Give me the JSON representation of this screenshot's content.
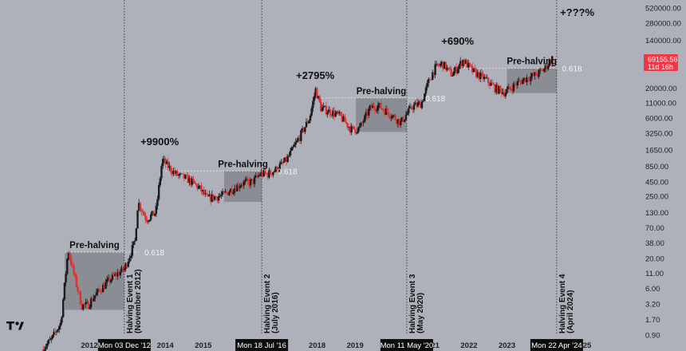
{
  "chart_data": {
    "type": "line",
    "scale": "log",
    "y_ticks": [
      "520000.00",
      "280000.00",
      "140000.00",
      "70000.00",
      "20000.00",
      "11000.00",
      "6000.00",
      "3250.00",
      "1650.00",
      "850.00",
      "450.00",
      "250.00",
      "130.00",
      "70.00",
      "38.00",
      "20.00",
      "11.00",
      "6.00",
      "3.20",
      "1.70",
      "0.90"
    ],
    "x_ticks": [
      "2012",
      "2014",
      "2015",
      "2018",
      "2019",
      "2021",
      "2022",
      "2023",
      "2025"
    ],
    "price_label": {
      "price": "69155.56",
      "countdown": "11d 16h",
      "color": "#f23645"
    },
    "series": [
      {
        "x": [
          2010.75,
          2011.0,
          2011.25,
          2011.44,
          2011.6,
          2011.8,
          2011.95,
          2012.2,
          2012.5,
          2012.75,
          2012.92,
          2013.2,
          2013.28,
          2013.5,
          2013.75,
          2013.92,
          2014.1,
          2014.3,
          2014.6,
          2014.9,
          2015.1,
          2015.5,
          2015.8,
          2016.0,
          2016.3,
          2016.5,
          2016.7,
          2016.9,
          2017.2,
          2017.5,
          2017.8,
          2017.96,
          2018.1,
          2018.3,
          2018.6,
          2018.9,
          2019.1,
          2019.4,
          2019.6,
          2019.9,
          2020.2,
          2020.5,
          2020.75,
          2020.95,
          2021.1,
          2021.3,
          2021.55,
          2021.85,
          2022.1,
          2022.4,
          2022.7,
          2022.95,
          2023.2,
          2023.5,
          2023.8,
          2024.0,
          2024.2
        ],
        "y": [
          0.5,
          0.75,
          1.5,
          29,
          10,
          3,
          3,
          5,
          8,
          11,
          13,
          40,
          200,
          100,
          130,
          1100,
          800,
          600,
          500,
          350,
          230,
          260,
          350,
          420,
          450,
          620,
          620,
          730,
          1100,
          2500,
          6000,
          19000,
          9000,
          8000,
          6500,
          3800,
          3800,
          9000,
          10000,
          7300,
          5000,
          9500,
          11000,
          28000,
          45000,
          55000,
          35000,
          63000,
          40000,
          30000,
          20000,
          17000,
          23000,
          30000,
          35000,
          45000,
          69000
        ]
      }
    ],
    "annotations": {
      "gains": [
        "+9900%",
        "+2795%",
        "+690%",
        "+???%"
      ],
      "pre_halving": [
        "Pre-halving",
        "Pre-halving",
        "Pre-halving",
        "Pre-halving"
      ],
      "fib_level": "0.618",
      "halving_events": [
        {
          "title": "Halving Event 1",
          "sub": "(November 2012)",
          "date_label": "Mon 03 Dec '12",
          "year": 2012.92
        },
        {
          "title": "Halving Event 2",
          "sub": "(July 2016)",
          "date_label": "Mon 18 Jul '16",
          "year": 2016.54
        },
        {
          "title": "Halving Event 3",
          "sub": "(May 2020)",
          "date_label": "Mon 11 May '20",
          "year": 2020.36
        },
        {
          "title": "Halving Event 4",
          "sub": "(April 2024)",
          "date_label": "Mon 22 Apr '24",
          "year": 2024.31
        }
      ]
    },
    "colors": {
      "up": "#1b1b1b",
      "down": "#e03030",
      "background": "#aeb1b9",
      "box": "#7f8288"
    }
  }
}
